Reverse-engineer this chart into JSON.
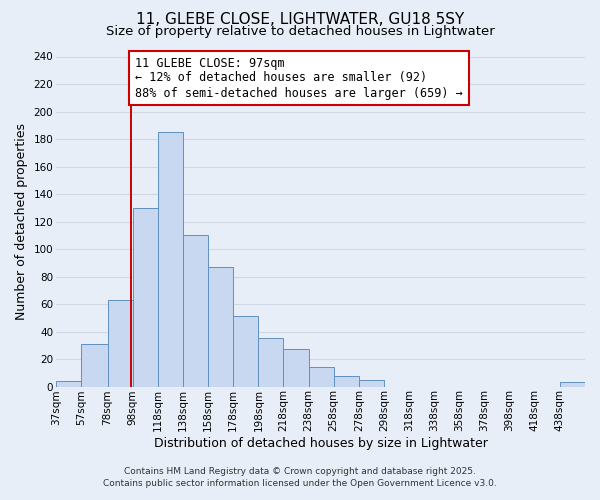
{
  "title": "11, GLEBE CLOSE, LIGHTWATER, GU18 5SY",
  "subtitle": "Size of property relative to detached houses in Lightwater",
  "xlabel": "Distribution of detached houses by size in Lightwater",
  "ylabel": "Number of detached properties",
  "bin_labels": [
    "37sqm",
    "57sqm",
    "78sqm",
    "98sqm",
    "118sqm",
    "138sqm",
    "158sqm",
    "178sqm",
    "198sqm",
    "218sqm",
    "238sqm",
    "258sqm",
    "278sqm",
    "298sqm",
    "318sqm",
    "338sqm",
    "358sqm",
    "378sqm",
    "398sqm",
    "418sqm",
    "438sqm"
  ],
  "bin_edges": [
    37,
    57,
    78,
    98,
    118,
    138,
    158,
    178,
    198,
    218,
    238,
    258,
    278,
    298,
    318,
    338,
    358,
    378,
    398,
    418,
    438,
    458
  ],
  "bar_heights": [
    4,
    31,
    63,
    130,
    185,
    110,
    87,
    51,
    35,
    27,
    14,
    8,
    5,
    0,
    0,
    0,
    0,
    0,
    0,
    0,
    3
  ],
  "bar_color": "#c8d8f0",
  "bar_edge_color": "#6090c0",
  "vline_x": 97,
  "vline_color": "#cc0000",
  "ylim": [
    0,
    240
  ],
  "yticks": [
    0,
    20,
    40,
    60,
    80,
    100,
    120,
    140,
    160,
    180,
    200,
    220,
    240
  ],
  "annotation_title": "11 GLEBE CLOSE: 97sqm",
  "annotation_line1": "← 12% of detached houses are smaller (92)",
  "annotation_line2": "88% of semi-detached houses are larger (659) →",
  "annotation_box_color": "#ffffff",
  "annotation_box_edge": "#cc0000",
  "grid_color": "#d0d8e8",
  "background_color": "#e8eef8",
  "footer1": "Contains HM Land Registry data © Crown copyright and database right 2025.",
  "footer2": "Contains public sector information licensed under the Open Government Licence v3.0.",
  "title_fontsize": 11,
  "subtitle_fontsize": 9.5,
  "axis_label_fontsize": 9,
  "tick_fontsize": 7.5,
  "annotation_fontsize": 8.5,
  "footer_fontsize": 6.5
}
